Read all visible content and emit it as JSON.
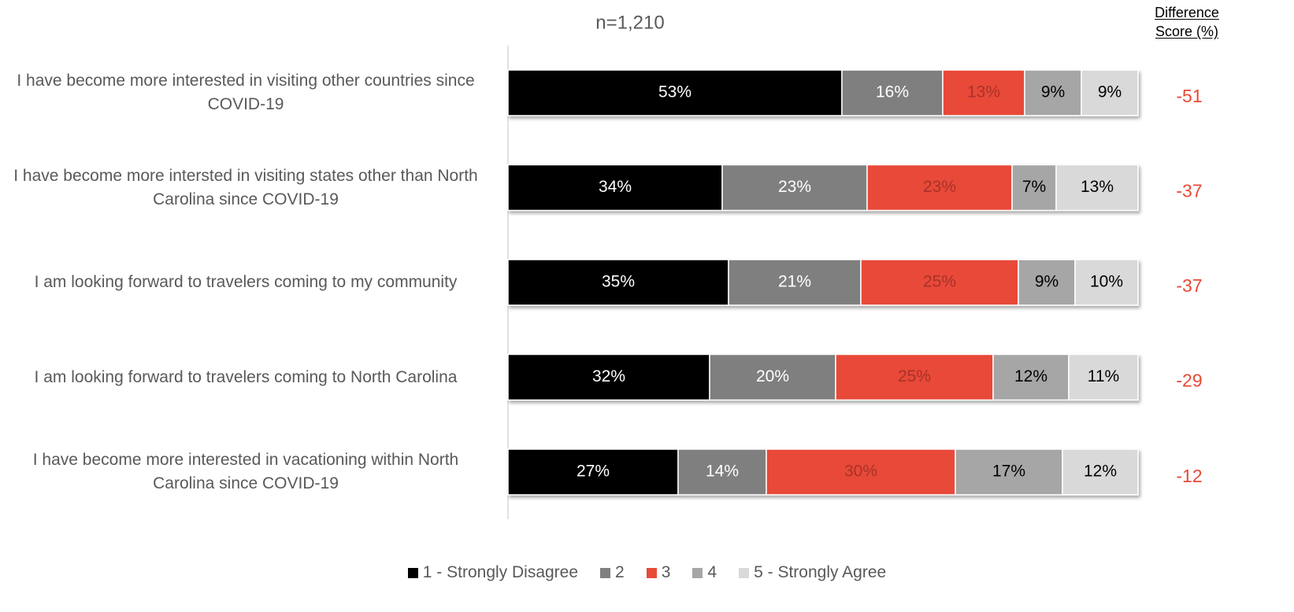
{
  "chart_data": {
    "type": "stacked_bar_horizontal",
    "title": "n=1,210",
    "categories": [
      "I have become more interested in visiting other countries since COVID-19",
      "I have become more intersted in visiting states other than North Carolina since COVID-19",
      "I am looking forward to travelers coming to my community",
      "I am looking forward to travelers coming to North Carolina",
      "I have become more interested in vacationing within North Carolina since COVID-19"
    ],
    "xlim": [
      0,
      100
    ],
    "series": [
      {
        "name": "1 - Strongly Disagree",
        "color": "#000000",
        "label_color": "#ffffff",
        "values": [
          53,
          34,
          35,
          32,
          27
        ],
        "value_labels": [
          "53%",
          "34%",
          "35%",
          "32%",
          "27%"
        ]
      },
      {
        "name": "2",
        "color": "#7f7f7f",
        "label_color": "#ffffff",
        "values": [
          16,
          23,
          21,
          20,
          14
        ],
        "value_labels": [
          "16%",
          "23%",
          "21%",
          "20%",
          "14%"
        ]
      },
      {
        "name": "3",
        "color": "#e84a37",
        "label_color": "#a8322a",
        "values": [
          13,
          23,
          25,
          25,
          30
        ],
        "value_labels": [
          "13%",
          "23%",
          "25%",
          "25%",
          "30%"
        ]
      },
      {
        "name": "4",
        "color": "#a6a6a6",
        "label_color": "#000000",
        "values": [
          9,
          7,
          9,
          12,
          17
        ],
        "value_labels": [
          "9%",
          "7%",
          "9%",
          "12%",
          "17%"
        ]
      },
      {
        "name": "5 - Strongly Agree",
        "color": "#d9d9d9",
        "label_color": "#000000",
        "values": [
          9,
          13,
          10,
          11,
          12
        ],
        "value_labels": [
          "9%",
          "13%",
          "10%",
          "11%",
          "12%"
        ]
      }
    ],
    "difference_label": "Difference Score (%)",
    "difference_color": "#e84a37",
    "difference_scores": [
      -51,
      -37,
      -37,
      -29,
      -12
    ]
  }
}
